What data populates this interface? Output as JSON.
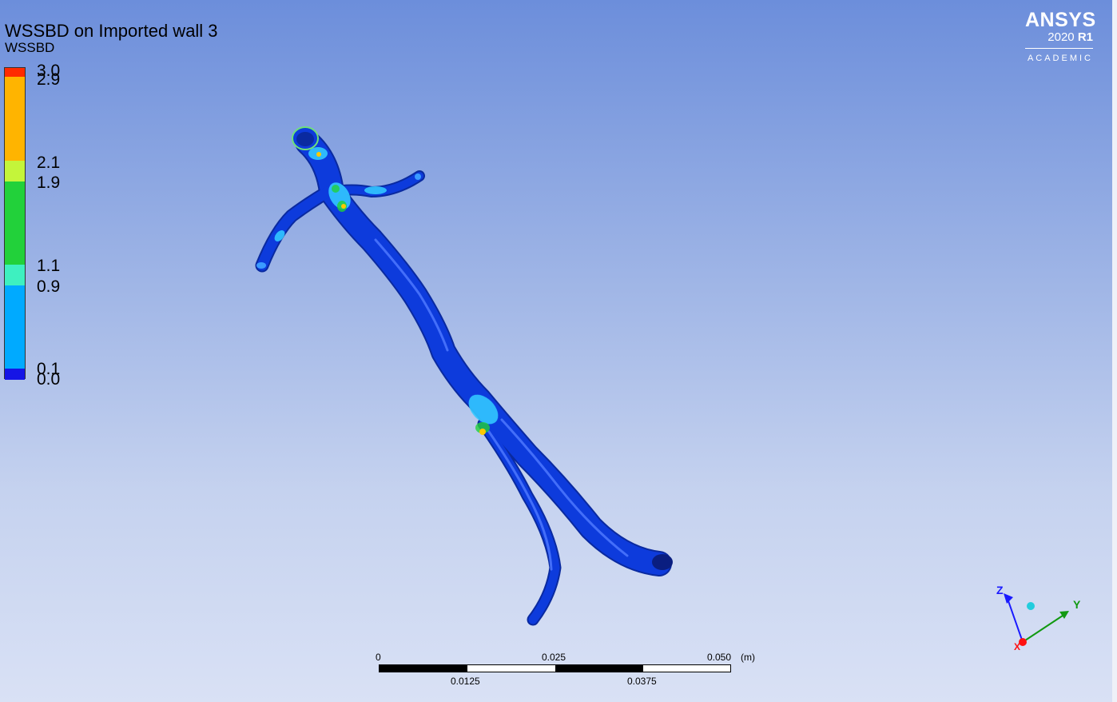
{
  "legend": {
    "title": "WSSBD on Imported wall 3",
    "variable": "WSSBD",
    "labels": [
      "3.0",
      "2.9",
      "2.1",
      "1.9",
      "1.1",
      "0.9",
      "0.1",
      "0.0"
    ],
    "colors": {
      "red": "#ff2a00",
      "orange": "#ffb400",
      "yellow_green": "#c4f53a",
      "green": "#22d13a",
      "teal": "#3ef0c0",
      "light_blue": "#00aaff",
      "blue": "#1515e6"
    }
  },
  "logo": {
    "brand": "ANSYS",
    "version": "2020",
    "release": "R1",
    "edition": "ACADEMIC"
  },
  "scale": {
    "top_labels": [
      "0",
      "0.025",
      "0.050"
    ],
    "bottom_labels": [
      "0.0125",
      "0.0375"
    ],
    "unit": "(m)"
  },
  "axes": {
    "z": "Z",
    "y": "Y",
    "x": "X",
    "colors": {
      "z": "#1a1aff",
      "y": "#119911",
      "x": "#ff1111",
      "dot": "#22ccdd"
    }
  },
  "model": {
    "body_color": "#0d3bdc",
    "highlight_color": "#33ccff"
  }
}
